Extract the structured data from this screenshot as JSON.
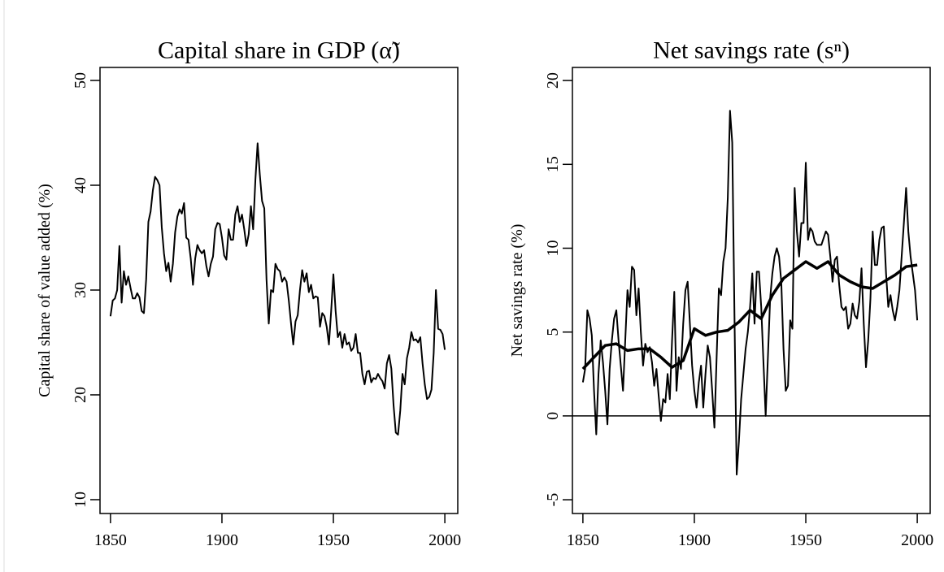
{
  "chart_data": [
    {
      "type": "line",
      "title": "Capital share in GDP (α̃)",
      "ylabel": "Capital share of value added (%)",
      "xlim": [
        1845.3,
        2005.8
      ],
      "ylim": [
        8.68,
        51.24
      ],
      "xticks": [
        1850,
        1900,
        1950,
        2000
      ],
      "yticks": [
        10,
        20,
        30,
        40,
        50
      ],
      "x": [
        1850,
        1851,
        1852,
        1853,
        1854,
        1855,
        1856,
        1857,
        1858,
        1859,
        1860,
        1861,
        1862,
        1863,
        1864,
        1865,
        1866,
        1867,
        1868,
        1869,
        1870,
        1871,
        1872,
        1873,
        1874,
        1875,
        1876,
        1877,
        1878,
        1879,
        1880,
        1881,
        1882,
        1883,
        1884,
        1885,
        1886,
        1887,
        1888,
        1889,
        1890,
        1891,
        1892,
        1893,
        1894,
        1895,
        1896,
        1897,
        1898,
        1899,
        1900,
        1901,
        1902,
        1903,
        1904,
        1905,
        1906,
        1907,
        1908,
        1909,
        1910,
        1911,
        1912,
        1913,
        1914,
        1915,
        1916,
        1917,
        1918,
        1919,
        1920,
        1921,
        1922,
        1923,
        1924,
        1925,
        1926,
        1927,
        1928,
        1929,
        1930,
        1931,
        1932,
        1933,
        1934,
        1935,
        1936,
        1937,
        1938,
        1939,
        1940,
        1941,
        1942,
        1943,
        1944,
        1945,
        1946,
        1947,
        1948,
        1949,
        1950,
        1951,
        1952,
        1953,
        1954,
        1955,
        1956,
        1957,
        1958,
        1959,
        1960,
        1961,
        1962,
        1963,
        1964,
        1965,
        1966,
        1967,
        1968,
        1969,
        1970,
        1971,
        1972,
        1973,
        1974,
        1975,
        1976,
        1977,
        1978,
        1979,
        1980,
        1981,
        1982,
        1983,
        1984,
        1985,
        1986,
        1987,
        1988,
        1989,
        1990,
        1991,
        1992,
        1993,
        1994,
        1995,
        1996,
        1997,
        1998,
        1999,
        2000
      ],
      "series": [
        {
          "color": "#000000",
          "width": 2,
          "values": [
            27.5,
            29,
            29.2,
            30,
            34.2,
            28.8,
            31.8,
            30.5,
            31.3,
            30.2,
            29.2,
            29.2,
            29.7,
            29.3,
            28,
            27.8,
            31,
            36.5,
            37.5,
            39.5,
            40.8,
            40.5,
            40,
            36,
            33.5,
            31.8,
            32.6,
            30.8,
            32.5,
            35.5,
            37,
            37.7,
            37.3,
            38.3,
            35,
            34.8,
            33,
            30.5,
            33,
            34.3,
            33.8,
            33.5,
            33.8,
            32.3,
            31.3,
            32.5,
            33.2,
            35.8,
            36.4,
            36.3,
            35,
            33.3,
            32.9,
            35.8,
            34.8,
            34.8,
            37.2,
            38,
            36.5,
            37.2,
            35.8,
            34.2,
            35.3,
            38,
            35.8,
            40.5,
            44,
            41,
            38.5,
            37.8,
            31,
            26.8,
            30,
            29.8,
            32.5,
            32,
            31.8,
            30.8,
            31.2,
            30.8,
            29,
            26.8,
            24.8,
            27,
            27.6,
            30,
            31.9,
            30.8,
            31.6,
            29.8,
            30.5,
            29.2,
            29.4,
            29.3,
            26.5,
            27.8,
            27.5,
            26.5,
            24.8,
            28,
            31.5,
            28,
            25.5,
            26,
            24.5,
            25.8,
            24.8,
            25,
            24.2,
            24.5,
            25.8,
            24,
            24,
            22,
            21,
            22.2,
            22.3,
            21.2,
            21.6,
            21.5,
            22,
            21.6,
            21.3,
            20.6,
            23,
            23.8,
            22.5,
            19,
            16.4,
            16.2,
            18.5,
            22,
            21,
            23.5,
            24.5,
            26,
            25.2,
            25.3,
            25,
            25.5,
            23,
            21,
            19.6,
            19.8,
            20.5,
            24,
            30,
            26.3,
            26.2,
            25.8,
            24.3
          ]
        }
      ]
    },
    {
      "type": "line",
      "title": "Net savings rate (sⁿ)",
      "ylabel": "Net savings rate (%)",
      "xlim": [
        1845.3,
        2005.8
      ],
      "ylim": [
        -5.82,
        20.78
      ],
      "xticks": [
        1850,
        1900,
        1950,
        2000
      ],
      "yticks": [
        -5,
        0,
        5,
        10,
        15,
        20
      ],
      "hline": 0,
      "x": [
        1850,
        1851,
        1852,
        1853,
        1854,
        1855,
        1856,
        1857,
        1858,
        1859,
        1860,
        1861,
        1862,
        1863,
        1864,
        1865,
        1866,
        1867,
        1868,
        1869,
        1870,
        1871,
        1872,
        1873,
        1874,
        1875,
        1876,
        1877,
        1878,
        1879,
        1880,
        1881,
        1882,
        1883,
        1884,
        1885,
        1886,
        1887,
        1888,
        1889,
        1890,
        1891,
        1892,
        1893,
        1894,
        1895,
        1896,
        1897,
        1898,
        1899,
        1900,
        1901,
        1902,
        1903,
        1904,
        1905,
        1906,
        1907,
        1908,
        1909,
        1910,
        1911,
        1912,
        1913,
        1914,
        1915,
        1916,
        1917,
        1918,
        1919,
        1920,
        1921,
        1922,
        1923,
        1924,
        1925,
        1926,
        1927,
        1928,
        1929,
        1930,
        1931,
        1932,
        1933,
        1934,
        1935,
        1936,
        1937,
        1938,
        1939,
        1940,
        1941,
        1942,
        1943,
        1944,
        1945,
        1946,
        1947,
        1948,
        1949,
        1950,
        1951,
        1952,
        1953,
        1954,
        1955,
        1956,
        1957,
        1958,
        1959,
        1960,
        1961,
        1962,
        1963,
        1964,
        1965,
        1966,
        1967,
        1968,
        1969,
        1970,
        1971,
        1972,
        1973,
        1974,
        1975,
        1976,
        1977,
        1978,
        1979,
        1980,
        1981,
        1982,
        1983,
        1984,
        1985,
        1986,
        1987,
        1988,
        1989,
        1990,
        1991,
        1992,
        1993,
        1994,
        1995,
        1996,
        1997,
        1998,
        1999,
        2000
      ],
      "series": [
        {
          "color": "#000000",
          "width": 2,
          "values": [
            2,
            2.8,
            6.3,
            5.8,
            4.8,
            1.5,
            -1.1,
            2.5,
            4.5,
            3.2,
            1.5,
            -0.5,
            2.8,
            4.5,
            5.8,
            6.3,
            4.5,
            3,
            1.5,
            4.5,
            7.5,
            6.5,
            8.9,
            8.7,
            6,
            7.6,
            5,
            3,
            4.3,
            3.8,
            4.1,
            3.2,
            1.8,
            2.8,
            1.2,
            -0.3,
            1,
            0.8,
            2.5,
            1,
            4.5,
            7.4,
            1.5,
            3.5,
            2.8,
            5.5,
            7.5,
            8,
            5.5,
            3,
            1.5,
            0.5,
            2,
            3,
            0.5,
            2.5,
            4.2,
            3.5,
            1.5,
            -0.7,
            3.5,
            7.6,
            7.2,
            9.2,
            10,
            13,
            18.2,
            16.3,
            6,
            -3.5,
            -1.5,
            1,
            2.5,
            4,
            5,
            6.5,
            8.5,
            5.5,
            8.6,
            8.6,
            6.5,
            3.2,
            0,
            3.5,
            7,
            8.5,
            9.5,
            10,
            9.5,
            8,
            4,
            1.5,
            1.8,
            5.7,
            5.2,
            13.6,
            11,
            9.5,
            11.5,
            11.5,
            15.1,
            10.5,
            11.2,
            11,
            10.4,
            10.2,
            10.2,
            10.2,
            10.6,
            11,
            10.8,
            9.5,
            8,
            9.3,
            9.5,
            7.8,
            6.5,
            6.3,
            6.5,
            5.2,
            5.5,
            6.7,
            6,
            5.8,
            6.8,
            8.8,
            5.5,
            2.9,
            4.5,
            7,
            11,
            9,
            9,
            10.5,
            11.2,
            11.3,
            8.5,
            6.5,
            7.2,
            6.3,
            5.7,
            6.5,
            7.5,
            9.5,
            11.5,
            13.6,
            11,
            9.5,
            8.5,
            7.5,
            5.7
          ]
        },
        {
          "color": "#000000",
          "width": 3.5,
          "x": [
            1850,
            1855,
            1860,
            1865,
            1870,
            1875,
            1880,
            1885,
            1890,
            1895,
            1900,
            1905,
            1910,
            1915,
            1920,
            1925,
            1930,
            1935,
            1940,
            1945,
            1950,
            1955,
            1960,
            1965,
            1970,
            1975,
            1980,
            1985,
            1990,
            1995,
            2000
          ],
          "values": [
            2.8,
            3.5,
            4.2,
            4.3,
            3.9,
            4.0,
            4.0,
            3.5,
            2.9,
            3.3,
            5.2,
            4.8,
            5.0,
            5.1,
            5.6,
            6.3,
            5.8,
            7.2,
            8.2,
            8.7,
            9.2,
            8.8,
            9.2,
            8.4,
            8.0,
            7.7,
            7.6,
            8.0,
            8.4,
            8.9,
            9.0
          ]
        }
      ]
    }
  ]
}
